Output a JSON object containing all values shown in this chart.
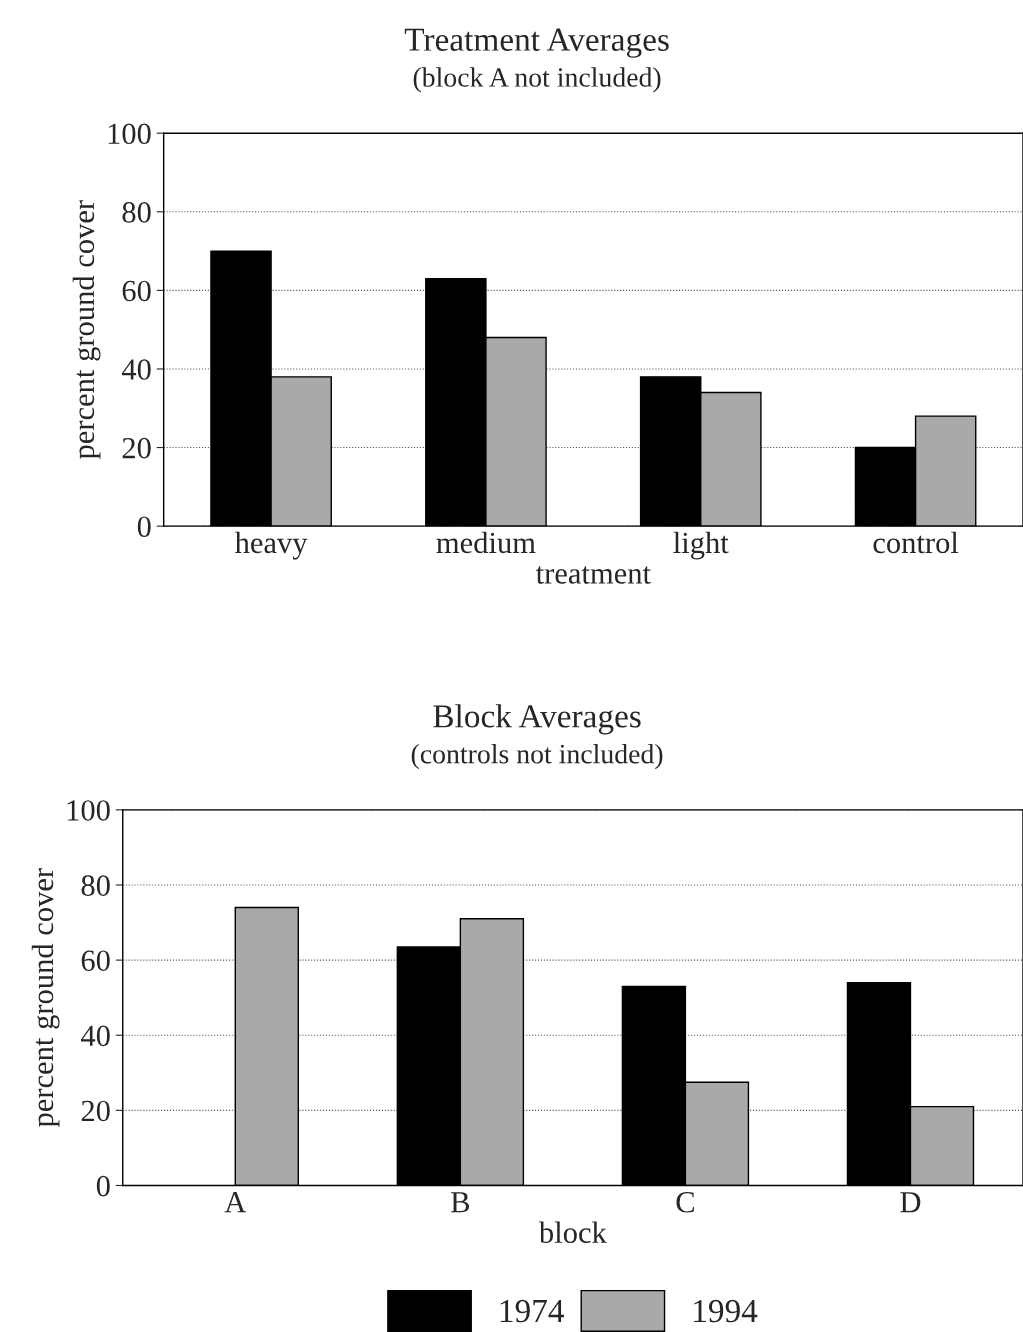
{
  "chart_data": [
    {
      "type": "bar",
      "title": "Treatment Averages",
      "subtitle": "(block A not included)",
      "xlabel": "treatment",
      "ylabel": "percent ground cover",
      "categories": [
        "heavy",
        "medium",
        "light",
        "control"
      ],
      "series": [
        {
          "color": "#000000",
          "values": [
            70,
            63,
            38,
            20
          ]
        },
        {
          "color": "#a9a9a9",
          "values": [
            38,
            48,
            34,
            28
          ]
        }
      ],
      "ylim": [
        0,
        100
      ],
      "yticks": [
        0,
        20,
        40,
        60,
        80,
        100
      ],
      "grid": "y",
      "legend": false
    },
    {
      "type": "bar",
      "title": "Block Averages",
      "subtitle": "(controls not included)",
      "xlabel": "block",
      "ylabel": "percent ground cover",
      "categories": [
        "A",
        "B",
        "C",
        "D"
      ],
      "series": [
        {
          "name": "1974",
          "color": "#000000",
          "values": [
            null,
            63.5,
            53,
            54
          ]
        },
        {
          "name": "1994",
          "color": "#a9a9a9",
          "values": [
            74,
            71,
            27.5,
            21
          ]
        }
      ],
      "ylim": [
        0,
        100
      ],
      "yticks": [
        0,
        20,
        40,
        60,
        80,
        100
      ],
      "grid": "y",
      "legend": "bottom"
    }
  ]
}
